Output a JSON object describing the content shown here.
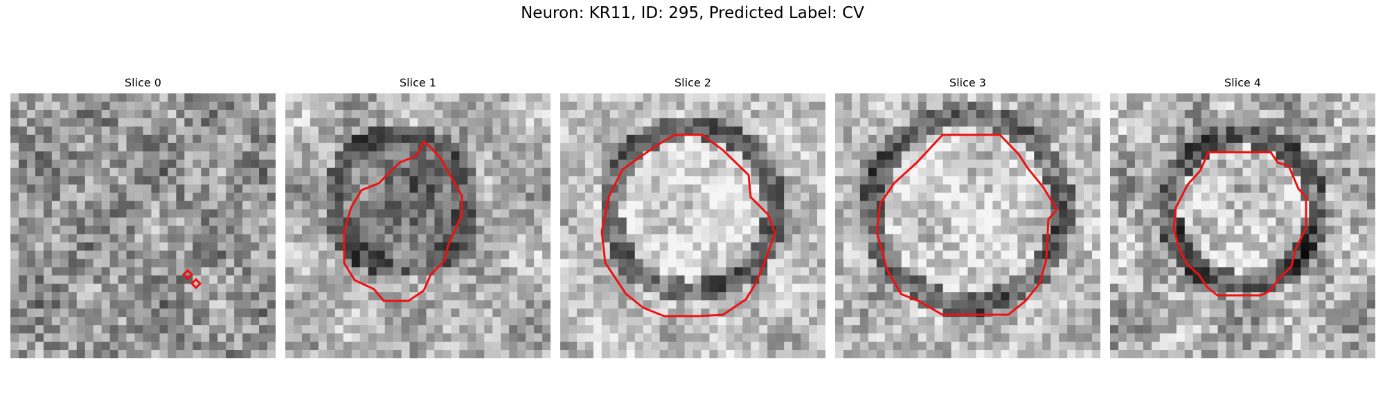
{
  "title": "Neuron: KR11, ID: 295, Predicted Label: CV",
  "panels": [
    {
      "title": "Slice 0"
    },
    {
      "title": "Slice 1"
    },
    {
      "title": "Slice 2"
    },
    {
      "title": "Slice 3"
    },
    {
      "title": "Slice 4"
    }
  ],
  "colors": {
    "contour": "#ee1111",
    "background": "#ffffff"
  }
}
